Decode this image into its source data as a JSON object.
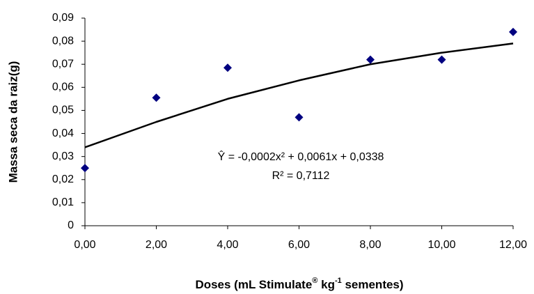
{
  "chart_data": {
    "type": "scatter",
    "ylabel": "Massa seca da raiz(g)",
    "xlabel": [
      "Doses (mL Stimulate",
      "®",
      " kg",
      "-1",
      " sementes)"
    ],
    "annotations": [
      "Ŷ = -0,0002x² + 0,0061x + 0,0338",
      "R² = 0,7112"
    ],
    "x": [
      0,
      2,
      4,
      6,
      8,
      10,
      12
    ],
    "values": [
      0.025,
      0.0555,
      0.0685,
      0.047,
      0.072,
      0.072,
      0.084
    ],
    "color": "#000080",
    "trendline": {
      "x": [
        0,
        2,
        4,
        6,
        8,
        10,
        12
      ],
      "values": [
        0.034,
        0.045,
        0.055,
        0.063,
        0.07,
        0.075,
        0.079
      ],
      "color": "#000000"
    },
    "xlim": [
      0,
      12
    ],
    "ylim": [
      0,
      0.09
    ],
    "xticks": [
      {
        "value": 0,
        "label": "0,00"
      },
      {
        "value": 2,
        "label": "2,00"
      },
      {
        "value": 4,
        "label": "4,00"
      },
      {
        "value": 6,
        "label": "6,00"
      },
      {
        "value": 8,
        "label": "8,00"
      },
      {
        "value": 10,
        "label": "10,00"
      },
      {
        "value": 12,
        "label": "12,00"
      }
    ],
    "yticks": [
      0,
      {
        "value": 0.01,
        "label": "0,01"
      },
      {
        "value": 0.02,
        "label": "0,02"
      },
      {
        "value": 0.03,
        "label": "0,03"
      },
      {
        "value": 0.04,
        "label": "0,04"
      },
      {
        "value": 0.05,
        "label": "0,05"
      },
      {
        "value": 0.06,
        "label": "0,06"
      },
      {
        "value": 0.07,
        "label": "0,07"
      },
      {
        "value": 0.08,
        "label": "0,08"
      },
      {
        "value": 0.09,
        "label": "0,09"
      }
    ],
    "grid": false
  }
}
